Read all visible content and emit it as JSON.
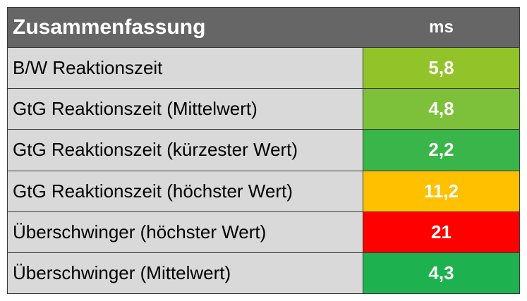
{
  "table": {
    "header": {
      "title": "Zusammenfassung",
      "unit": "ms"
    },
    "rows": [
      {
        "label": "B/W Reaktionszeit",
        "value": "5,8",
        "color": "#92c42a"
      },
      {
        "label": "GtG Reaktionszeit (Mittelwert)",
        "value": "4,8",
        "color": "#7dc13a"
      },
      {
        "label": "GtG Reaktionszeit (kürzester Wert)",
        "value": "2,2",
        "color": "#39b54a"
      },
      {
        "label": "GtG Reaktionszeit (höchster Wert)",
        "value": "11,2",
        "color": "#ffc000"
      },
      {
        "label": "Überschwinger (höchster Wert)",
        "value": "21",
        "color": "#ff0000"
      },
      {
        "label": "Überschwinger (Mittelwert)",
        "value": "4,3",
        "color": "#1db24f"
      }
    ]
  }
}
